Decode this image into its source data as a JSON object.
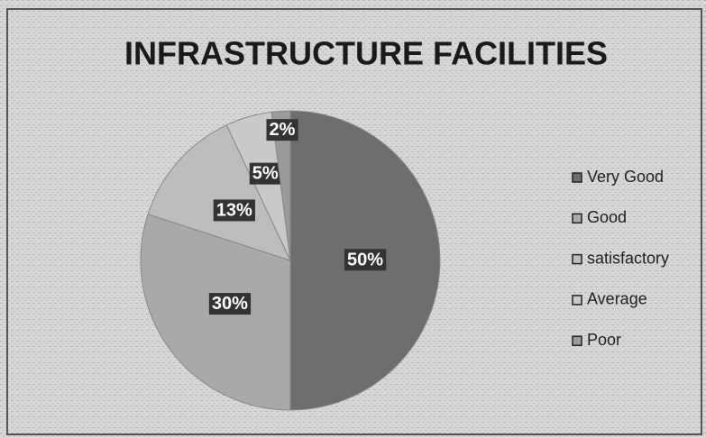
{
  "chart_data": {
    "type": "pie",
    "title": "INFRASTRUCTURE FACILITIES",
    "categories": [
      "Very Good",
      "Good",
      "satisfactory",
      "Average",
      "Poor"
    ],
    "values": [
      50,
      30,
      13,
      5,
      2
    ],
    "value_labels": [
      "50%",
      "30%",
      "13%",
      "5%",
      "2%"
    ],
    "colors": [
      "#6e6e6e",
      "#a9a9a9",
      "#bdbdbd",
      "#c9c9c9",
      "#9a9a9a"
    ],
    "legend": "right"
  }
}
